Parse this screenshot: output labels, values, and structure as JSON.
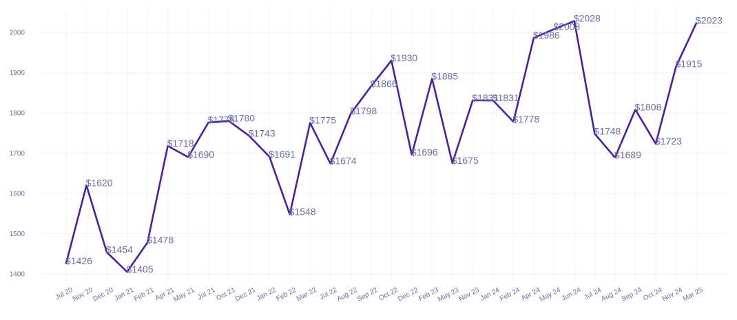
{
  "chart_data": {
    "type": "line",
    "title": "",
    "xlabel": "",
    "ylabel": "",
    "ylim": [
      1400,
      2000
    ],
    "yticks": [
      1400,
      1500,
      1600,
      1700,
      1800,
      1900,
      2000
    ],
    "grid": true,
    "line_color": "#4a1fa3",
    "label_color": "#6b6fa6",
    "grid_color": "#f4f4f8",
    "categories": [
      "Jul 20",
      "Nov 20",
      "Dec 20",
      "Jan 21",
      "Feb 21",
      "Apr 21",
      "May 21",
      "Jul 21",
      "Oct 21",
      "Dec 21",
      "Jan 22",
      "Feb 22",
      "Mar 22",
      "Jul 22",
      "Aug 22",
      "Sep 22",
      "Oct 22",
      "Dec 22",
      "Feb 23",
      "May 23",
      "Nov 23",
      "Jan 24",
      "Feb 24",
      "Apr 24",
      "May 24",
      "Jun 24",
      "Jul 24",
      "Aug 24",
      "Sep 24",
      "Oct 24",
      "Nov 24",
      "Mar 25"
    ],
    "series": [
      {
        "values": [
          1426,
          1620,
          1454,
          1405,
          1478,
          1718,
          1690,
          1776,
          1780,
          1743,
          1691,
          1548,
          1775,
          1674,
          1798,
          1866,
          1930,
          1696,
          1885,
          1675,
          1831,
          1831,
          1778,
          1986,
          2008,
          2028,
          1748,
          1689,
          1808,
          1723,
          1915,
          2023
        ],
        "labels": [
          "$1426",
          "$1620",
          "$1454",
          "$1405",
          "$1478",
          "$1718",
          "$1690",
          "$1776",
          "$1780",
          "$1743",
          "$1691",
          "$1548",
          "$1775",
          "$1674",
          "$1798",
          "$1866",
          "$1930",
          "$1696",
          "$1885",
          "$1675",
          "$1831",
          "$1831",
          "$1778",
          "$1986",
          "$2008",
          "$2028",
          "$1748",
          "$1689",
          "$1808",
          "$1723",
          "$1915",
          "$2023"
        ]
      }
    ]
  }
}
